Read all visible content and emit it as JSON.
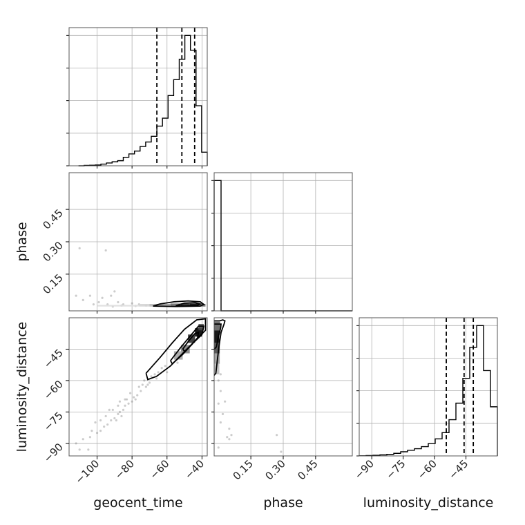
{
  "chart_data": {
    "type": "corner",
    "parameters": [
      "geocent_time",
      "phase",
      "luminosity_distance"
    ],
    "ranges": {
      "geocent_time": [
        -116,
        -37
      ],
      "phase": [
        -0.02,
        0.62
      ],
      "luminosity_distance": [
        -96,
        -30
      ]
    },
    "ticks": {
      "geocent_time": [
        -100,
        -80,
        -60,
        -40
      ],
      "phase": [
        0.15,
        0.3,
        0.45
      ],
      "luminosity_distance": [
        -90,
        -75,
        -60,
        -45
      ]
    },
    "tick_labels": {
      "geocent_time": [
        "−100",
        "−80",
        "−60",
        "−40"
      ],
      "phase": [
        "0.15",
        "0.30",
        "0.45"
      ],
      "luminosity_distance": [
        "−90",
        "−75",
        "−60",
        "−45"
      ]
    },
    "histograms": {
      "geocent_time": {
        "bin_edges": [
          -110.6,
          -107.4,
          -104.2,
          -101.0,
          -97.8,
          -94.6,
          -91.4,
          -88.2,
          -85.0,
          -81.8,
          -78.6,
          -75.4,
          -72.2,
          -69.0,
          -65.8,
          -62.6,
          -59.4,
          -56.2,
          -53.0,
          -49.8,
          -46.6,
          -43.4,
          -40.2,
          -37.0
        ],
        "counts": [
          0,
          0.3,
          0.5,
          0.7,
          1.5,
          2.5,
          3.5,
          4.5,
          7.5,
          10.5,
          13.0,
          17.0,
          21.0,
          26.0,
          35.0,
          42.0,
          62.0,
          76.0,
          94.0,
          115.0,
          102.0,
          53.0,
          12.0
        ],
        "quantiles": [
          -65.8,
          -51.5,
          -44.2
        ]
      },
      "phase": {
        "bin_edges": [
          -0.02,
          0.012,
          0.044,
          0.076,
          0.108,
          0.14,
          0.172,
          0.204,
          0.236,
          0.268,
          0.3,
          0.332,
          0.364,
          0.396,
          0.428,
          0.46,
          0.492,
          0.524,
          0.556,
          0.588,
          0.62
        ],
        "counts": [
          194,
          0,
          0,
          0,
          0,
          0,
          0,
          0,
          0,
          0,
          0,
          0,
          0,
          0,
          0,
          0,
          0,
          0,
          0,
          0
        ],
        "quantiles": []
      },
      "luminosity_distance": {
        "bin_edges": [
          -96.0,
          -92.7,
          -89.4,
          -86.1,
          -82.8,
          -79.5,
          -76.2,
          -72.9,
          -69.6,
          -66.3,
          -63.0,
          -59.7,
          -56.4,
          -53.1,
          -49.8,
          -46.5,
          -43.2,
          -39.9,
          -36.6,
          -33.3,
          -30.0
        ],
        "counts": [
          0.3,
          0.8,
          1.2,
          2.0,
          3.0,
          5.0,
          8.0,
          11.0,
          14.0,
          18.0,
          24.0,
          33.0,
          45.0,
          70.0,
          102.0,
          150.0,
          210.0,
          252.0,
          165.0,
          95.0
        ],
        "quantiles": [
          -54.4,
          -45.9,
          -41.5
        ]
      }
    },
    "pair_panels": [
      {
        "x": "geocent_time",
        "y": "phase",
        "density_cells": [
          [
            -76,
            -70,
            0.0,
            0.012,
            0.1
          ],
          [
            -70,
            -64,
            0.0,
            0.012,
            0.22
          ],
          [
            -64,
            -58,
            0.0,
            0.012,
            0.35
          ],
          [
            -58,
            -52,
            0.0,
            0.014,
            0.55
          ],
          [
            -52,
            -47,
            0.0,
            0.014,
            0.85
          ],
          [
            -47,
            -42,
            0.0,
            0.014,
            1.0
          ],
          [
            -42,
            -38,
            0.0,
            0.012,
            0.55
          ],
          [
            -100,
            -76,
            0.0,
            0.008,
            0.05
          ]
        ],
        "contours": [
          [
            [
              -68,
              0.002
            ],
            [
              -64,
              0.012
            ],
            [
              -56,
              0.022
            ],
            [
              -48,
              0.026
            ],
            [
              -41,
              0.022
            ],
            [
              -39,
              0.01
            ],
            [
              -41,
              0.002
            ],
            [
              -55,
              0.0
            ],
            [
              -68,
              0.002
            ]
          ],
          [
            [
              -55,
              0.004
            ],
            [
              -50,
              0.016
            ],
            [
              -44,
              0.018
            ],
            [
              -41,
              0.012
            ],
            [
              -43,
              0.004
            ],
            [
              -50,
              0.002
            ],
            [
              -55,
              0.004
            ]
          ]
        ],
        "scatter": [
          [
            -110,
            0.27
          ],
          [
            -95,
            0.26
          ],
          [
            -112,
            0.05
          ],
          [
            -104,
            0.05
          ],
          [
            -97,
            0.04
          ],
          [
            -92,
            0.05
          ],
          [
            -90,
            0.07
          ],
          [
            -88,
            0.02
          ],
          [
            -85,
            0.01
          ],
          [
            -80,
            0.015
          ],
          [
            -102,
            0.01
          ],
          [
            -108,
            0.03
          ],
          [
            -99,
            0.02
          ],
          [
            -94,
            0.01
          ],
          [
            -76,
            0.01
          ],
          [
            -72,
            0.005
          ],
          [
            -91,
            0.0
          ],
          [
            -86,
            0.005
          ],
          [
            -78,
            0.003
          ]
        ]
      },
      {
        "x": "geocent_time",
        "y": "luminosity_distance",
        "density_cells": [
          [
            -52,
            -47,
            -47,
            -43,
            0.45
          ],
          [
            -48,
            -44,
            -42,
            -38,
            0.8
          ],
          [
            -44,
            -40,
            -39,
            -35,
            1.0
          ],
          [
            -56,
            -51,
            -50,
            -46,
            0.3
          ],
          [
            -42,
            -39,
            -36,
            -33,
            0.7
          ]
        ],
        "contours": [
          [
            [
              -72,
              -56.5
            ],
            [
              -64,
              -49
            ],
            [
              -57,
              -42
            ],
            [
              -50,
              -35.5
            ],
            [
              -43,
              -31
            ],
            [
              -38,
              -30.5
            ],
            [
              -38,
              -36
            ],
            [
              -44,
              -41
            ],
            [
              -51,
              -47
            ],
            [
              -58,
              -53
            ],
            [
              -66,
              -58
            ],
            [
              -71,
              -59.5
            ],
            [
              -72,
              -56.5
            ]
          ],
          [
            [
              -58,
              -50.5
            ],
            [
              -52,
              -44
            ],
            [
              -46,
              -38
            ],
            [
              -42,
              -34
            ],
            [
              -39,
              -34
            ],
            [
              -40,
              -38
            ],
            [
              -45,
              -42
            ],
            [
              -51,
              -47.5
            ],
            [
              -57,
              -52
            ],
            [
              -58,
              -50.5
            ]
          ],
          [
            [
              -51,
              -45
            ],
            [
              -48,
              -41.5
            ],
            [
              -44,
              -37.5
            ],
            [
              -42,
              -37
            ],
            [
              -42.5,
              -39.5
            ],
            [
              -46,
              -43
            ],
            [
              -50,
              -46
            ],
            [
              -51,
              -45
            ]
          ]
        ],
        "scatter": [
          [
            -54,
            -51.5
          ],
          [
            -66,
            -59
          ],
          [
            -70,
            -61
          ],
          [
            -72,
            -63
          ],
          [
            -75,
            -65
          ],
          [
            -77,
            -67
          ],
          [
            -79,
            -68
          ],
          [
            -80,
            -70
          ],
          [
            -82,
            -71
          ],
          [
            -84,
            -72
          ],
          [
            -85,
            -74
          ],
          [
            -87,
            -75
          ],
          [
            -88,
            -76
          ],
          [
            -90,
            -78
          ],
          [
            -92,
            -79
          ],
          [
            -94,
            -81
          ],
          [
            -96,
            -82
          ],
          [
            -98,
            -84
          ],
          [
            -100,
            -85
          ],
          [
            -104,
            -87
          ],
          [
            -108,
            -88
          ],
          [
            -112,
            -90
          ],
          [
            -105,
            -93
          ],
          [
            -98,
            -79
          ],
          [
            -93,
            -74
          ],
          [
            -89,
            -79
          ],
          [
            -86,
            -77
          ],
          [
            -83,
            -69
          ],
          [
            -81,
            -66
          ],
          [
            -78,
            -69
          ],
          [
            -76,
            -63
          ],
          [
            -74,
            -62
          ],
          [
            -73,
            -60
          ],
          [
            -71,
            -62
          ],
          [
            -69,
            -58
          ],
          [
            -67,
            -57
          ],
          [
            -65,
            -56
          ],
          [
            -63,
            -54
          ],
          [
            -61,
            -53
          ],
          [
            -60,
            -56
          ],
          [
            -95,
            -77
          ],
          [
            -91,
            -74
          ],
          [
            -88,
            -72
          ],
          [
            -87,
            -70
          ],
          [
            -84,
            -69
          ],
          [
            -101,
            -80
          ],
          [
            -103,
            -84
          ],
          [
            -110,
            -93
          ]
        ]
      },
      {
        "x": "phase",
        "y": "luminosity_distance",
        "density_cells": [
          [
            -0.02,
            0.004,
            -42,
            -36,
            1.0
          ],
          [
            -0.02,
            0.006,
            -47,
            -42,
            0.7
          ],
          [
            -0.02,
            0.008,
            -36,
            -32,
            0.6
          ],
          [
            -0.02,
            0.006,
            -52,
            -47,
            0.35
          ],
          [
            -0.02,
            0.004,
            -57,
            -52,
            0.2
          ]
        ],
        "contours": [
          [
            [
              -0.02,
              -57.5
            ],
            [
              -0.012,
              -56.5
            ],
            [
              -0.006,
              -51
            ],
            [
              0.002,
              -44
            ],
            [
              0.012,
              -37
            ],
            [
              0.026,
              -33
            ],
            [
              0.03,
              -31.5
            ],
            [
              0.02,
              -31
            ],
            [
              0.005,
              -31.5
            ],
            [
              -0.02,
              -31.5
            ]
          ],
          [
            [
              -0.02,
              -45
            ],
            [
              -0.01,
              -44
            ],
            [
              0.0,
              -39
            ],
            [
              0.01,
              -35
            ],
            [
              0.012,
              -33
            ],
            [
              0.0,
              -33
            ],
            [
              -0.02,
              -33
            ]
          ]
        ],
        "scatter": [
          [
            0.01,
            -65
          ],
          [
            0.03,
            -70
          ],
          [
            0.05,
            -83
          ],
          [
            0.06,
            -86
          ],
          [
            0.05,
            -88
          ],
          [
            0.27,
            -86
          ],
          [
            0.29,
            -94
          ],
          [
            0.0,
            -92
          ],
          [
            0.01,
            -80
          ],
          [
            0.02,
            -76
          ],
          [
            0.0,
            -71
          ],
          [
            0.04,
            -87
          ],
          [
            0.0,
            -60
          ],
          [
            0.01,
            -57
          ]
        ]
      }
    ],
    "xlabels": [
      "geocent_time",
      "phase",
      "luminosity_distance"
    ],
    "ylabels": [
      "",
      "phase",
      "luminosity_distance"
    ],
    "grid": true,
    "legend": "none"
  }
}
